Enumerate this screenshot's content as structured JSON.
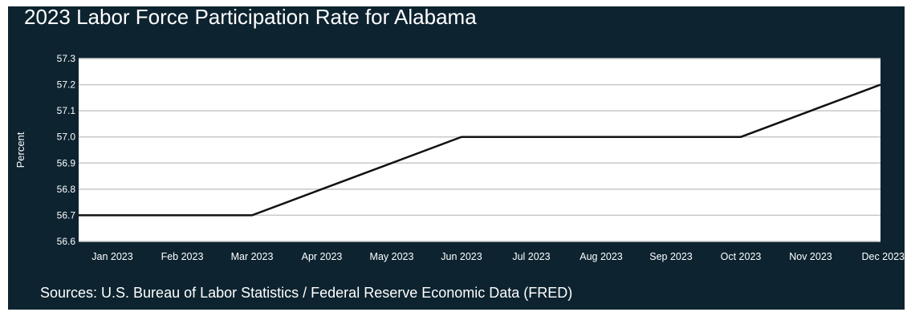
{
  "chart_data": {
    "type": "line",
    "title": "2023 Labor Force Participation Rate for Alabama",
    "ylabel": "Percent",
    "xlabel": "",
    "categories": [
      "Jan 2023",
      "Feb 2023",
      "Mar 2023",
      "Apr 2023",
      "May 2023",
      "Jun 2023",
      "Jul 2023",
      "Aug 2023",
      "Sep 2023",
      "Oct 2023",
      "Nov 2023",
      "Dec 2023"
    ],
    "series": [
      {
        "values": [
          56.7,
          56.7,
          56.7,
          56.8,
          56.9,
          57.0,
          57.0,
          57.0,
          57.0,
          57.0,
          57.1,
          57.2
        ]
      }
    ],
    "ylim": [
      56.6,
      57.3
    ],
    "yticks": [
      "56.6",
      "56.7",
      "56.8",
      "56.9",
      "57.0",
      "57.1",
      "57.2",
      "57.3"
    ],
    "grid": true,
    "source": "Sources: U.S. Bureau of Labor Statistics / Federal Reserve Economic Data (FRED)",
    "colors": {
      "background": "#0d2330",
      "plot": "#ffffff",
      "line": "#111111",
      "grid": "#c8c8c8",
      "text": "#ffffff"
    }
  }
}
